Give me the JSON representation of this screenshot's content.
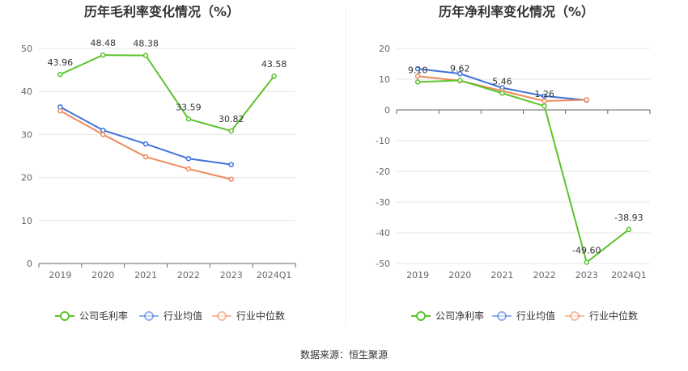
{
  "page": {
    "source": "数据来源：恒生聚源"
  },
  "chart_data": [
    {
      "type": "line",
      "title": "历年毛利率变化情况（%）",
      "categories": [
        "2019",
        "2020",
        "2021",
        "2022",
        "2023",
        "2024Q1"
      ],
      "ylim": [
        0,
        50
      ],
      "yticks": [
        0,
        10,
        20,
        30,
        40,
        50
      ],
      "grid": true,
      "legend": "bottom",
      "series": [
        {
          "name": "公司毛利率",
          "color": "#5bc42b",
          "values": [
            43.96,
            48.48,
            48.38,
            33.59,
            30.82,
            43.58
          ],
          "labels": [
            "43.96",
            "48.48",
            "48.38",
            "33.59",
            "30.82",
            "43.58"
          ]
        },
        {
          "name": "行业均值",
          "color": "#3d73d9",
          "values": [
            36.4,
            31.0,
            27.8,
            24.4,
            23.0,
            null
          ]
        },
        {
          "name": "行业中位数",
          "color": "#f08a5d",
          "values": [
            35.5,
            30.0,
            24.8,
            22.0,
            19.6,
            null
          ]
        }
      ]
    },
    {
      "type": "line",
      "title": "历年净利率变化情况（%）",
      "categories": [
        "2019",
        "2020",
        "2021",
        "2022",
        "2023",
        "2024Q1"
      ],
      "ylim": [
        -50,
        20
      ],
      "yticks": [
        -50,
        -40,
        -30,
        -20,
        -10,
        0,
        10,
        20
      ],
      "grid": true,
      "legend": "bottom",
      "series": [
        {
          "name": "公司净利率",
          "color": "#5bc42b",
          "values": [
            9.1,
            9.62,
            5.46,
            1.26,
            -49.6,
            -38.93
          ],
          "labels": [
            "9.10",
            "9.62",
            "5.46",
            "1.26",
            "-49.60",
            "-38.93"
          ]
        },
        {
          "name": "行业均值",
          "color": "#3d73d9",
          "values": [
            13.4,
            11.8,
            7.2,
            4.5,
            3.2,
            null
          ]
        },
        {
          "name": "行业中位数",
          "color": "#f08a5d",
          "values": [
            11.0,
            9.5,
            6.2,
            2.9,
            3.3,
            null
          ]
        }
      ]
    }
  ]
}
